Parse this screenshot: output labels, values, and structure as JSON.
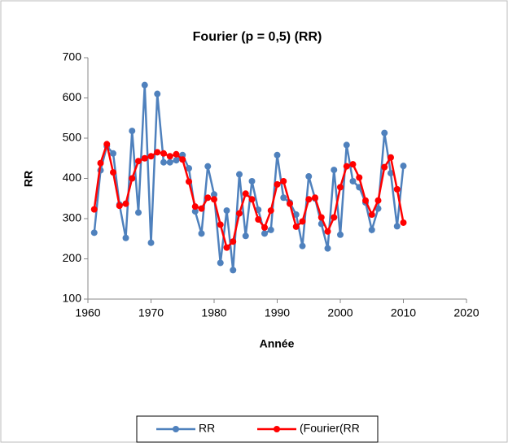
{
  "chart_data": {
    "type": "line",
    "title": "Fourier (p  = 0,5) (RR)",
    "x_label": "Année",
    "y_label": "RR",
    "x": [
      1961,
      1962,
      1963,
      1964,
      1965,
      1966,
      1967,
      1968,
      1969,
      1970,
      1971,
      1972,
      1973,
      1974,
      1975,
      1976,
      1977,
      1978,
      1979,
      1980,
      1981,
      1982,
      1983,
      1984,
      1985,
      1986,
      1987,
      1988,
      1989,
      1990,
      1991,
      1992,
      1993,
      1994,
      1995,
      1996,
      1997,
      1998,
      1999,
      2000,
      2001,
      2002,
      2003,
      2004,
      2005,
      2006,
      2007,
      2008,
      2009,
      2010
    ],
    "series": [
      {
        "name": "RR",
        "color": "#4f81bd",
        "values": [
          265,
          420,
          480,
          462,
          335,
          252,
          518,
          315,
          632,
          240,
          610,
          440,
          440,
          445,
          458,
          425,
          318,
          263,
          430,
          360,
          190,
          320,
          172,
          410,
          257,
          393,
          322,
          263,
          272,
          458,
          352,
          340,
          310,
          232,
          405,
          350,
          287,
          226,
          421,
          260,
          483,
          393,
          378,
          340,
          272,
          325,
          513,
          413,
          281,
          431
        ]
      },
      {
        "name": "(Fourier(RR",
        "color": "#ff0000",
        "values": [
          323,
          438,
          485,
          415,
          332,
          337,
          400,
          443,
          450,
          455,
          465,
          462,
          455,
          460,
          447,
          392,
          330,
          325,
          352,
          348,
          285,
          228,
          243,
          313,
          362,
          348,
          298,
          278,
          320,
          385,
          393,
          337,
          280,
          293,
          348,
          352,
          303,
          268,
          303,
          378,
          430,
          435,
          402,
          345,
          310,
          345,
          428,
          452,
          373,
          290
        ]
      }
    ],
    "xlim": [
      1960,
      2020
    ],
    "xticks": [
      1960,
      1970,
      1980,
      1990,
      2000,
      2010,
      2020
    ],
    "ylim": [
      100,
      700
    ],
    "yticks": [
      100,
      200,
      300,
      400,
      500,
      600,
      700
    ],
    "legend": "bottom"
  }
}
